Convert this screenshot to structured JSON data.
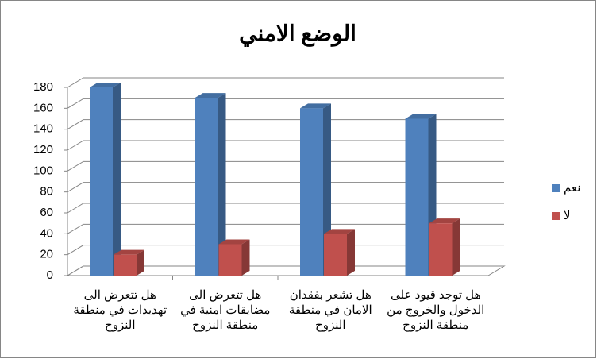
{
  "chart_data": {
    "type": "bar3d",
    "title": "الوضع الامني",
    "categories": [
      "هل تتعرض الى تهديدات في منطقة النزوح",
      "هل تتعرض الى مضايقات امنية في منطقة النزوح",
      "هل تشعر بفقدان الامان في منطقة النزوح",
      "هل توجد قيود على الدخول والخروج من منطقة النزوح"
    ],
    "series": [
      {
        "name": "نعم",
        "color": "#4f81bd",
        "values": [
          180,
          170,
          160,
          150
        ]
      },
      {
        "name": "لا",
        "color": "#c0504d",
        "values": [
          20,
          30,
          40,
          50
        ]
      }
    ],
    "ylim": [
      0,
      180
    ],
    "yticks": [
      0,
      20,
      40,
      60,
      80,
      100,
      120,
      140,
      160,
      180
    ],
    "grid": true,
    "legend": "right"
  }
}
